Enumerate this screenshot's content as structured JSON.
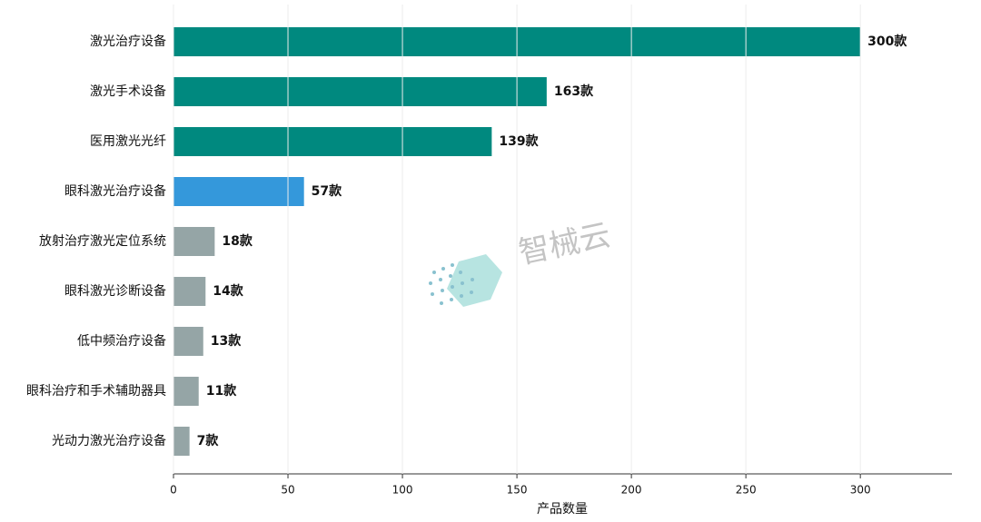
{
  "chart_data": {
    "type": "hbar",
    "categories": [
      "激光治疗设备",
      "激光手术设备",
      "医用激光光纤",
      "眼科激光治疗设备",
      "放射治疗激光定位系统",
      "眼科激光诊断设备",
      "低中频治疗设备",
      "眼科治疗和手术辅助器具",
      "光动力激光治疗设备"
    ],
    "values": [
      300,
      163,
      139,
      57,
      18,
      14,
      13,
      11,
      7
    ],
    "value_labels": [
      "300款",
      "163款",
      "139款",
      "57款",
      "18款",
      "14款",
      "13款",
      "11款",
      "7款"
    ],
    "colors": [
      "#00897f",
      "#00897f",
      "#00897f",
      "#3498db",
      "#95a5a6",
      "#95a5a6",
      "#95a5a6",
      "#95a5a6",
      "#95a5a6"
    ],
    "xlabel": "产品数量",
    "xlim": [
      0,
      340
    ],
    "xticks": [
      0,
      50,
      100,
      150,
      200,
      250,
      300
    ],
    "grid": true,
    "watermark": "智械云"
  }
}
